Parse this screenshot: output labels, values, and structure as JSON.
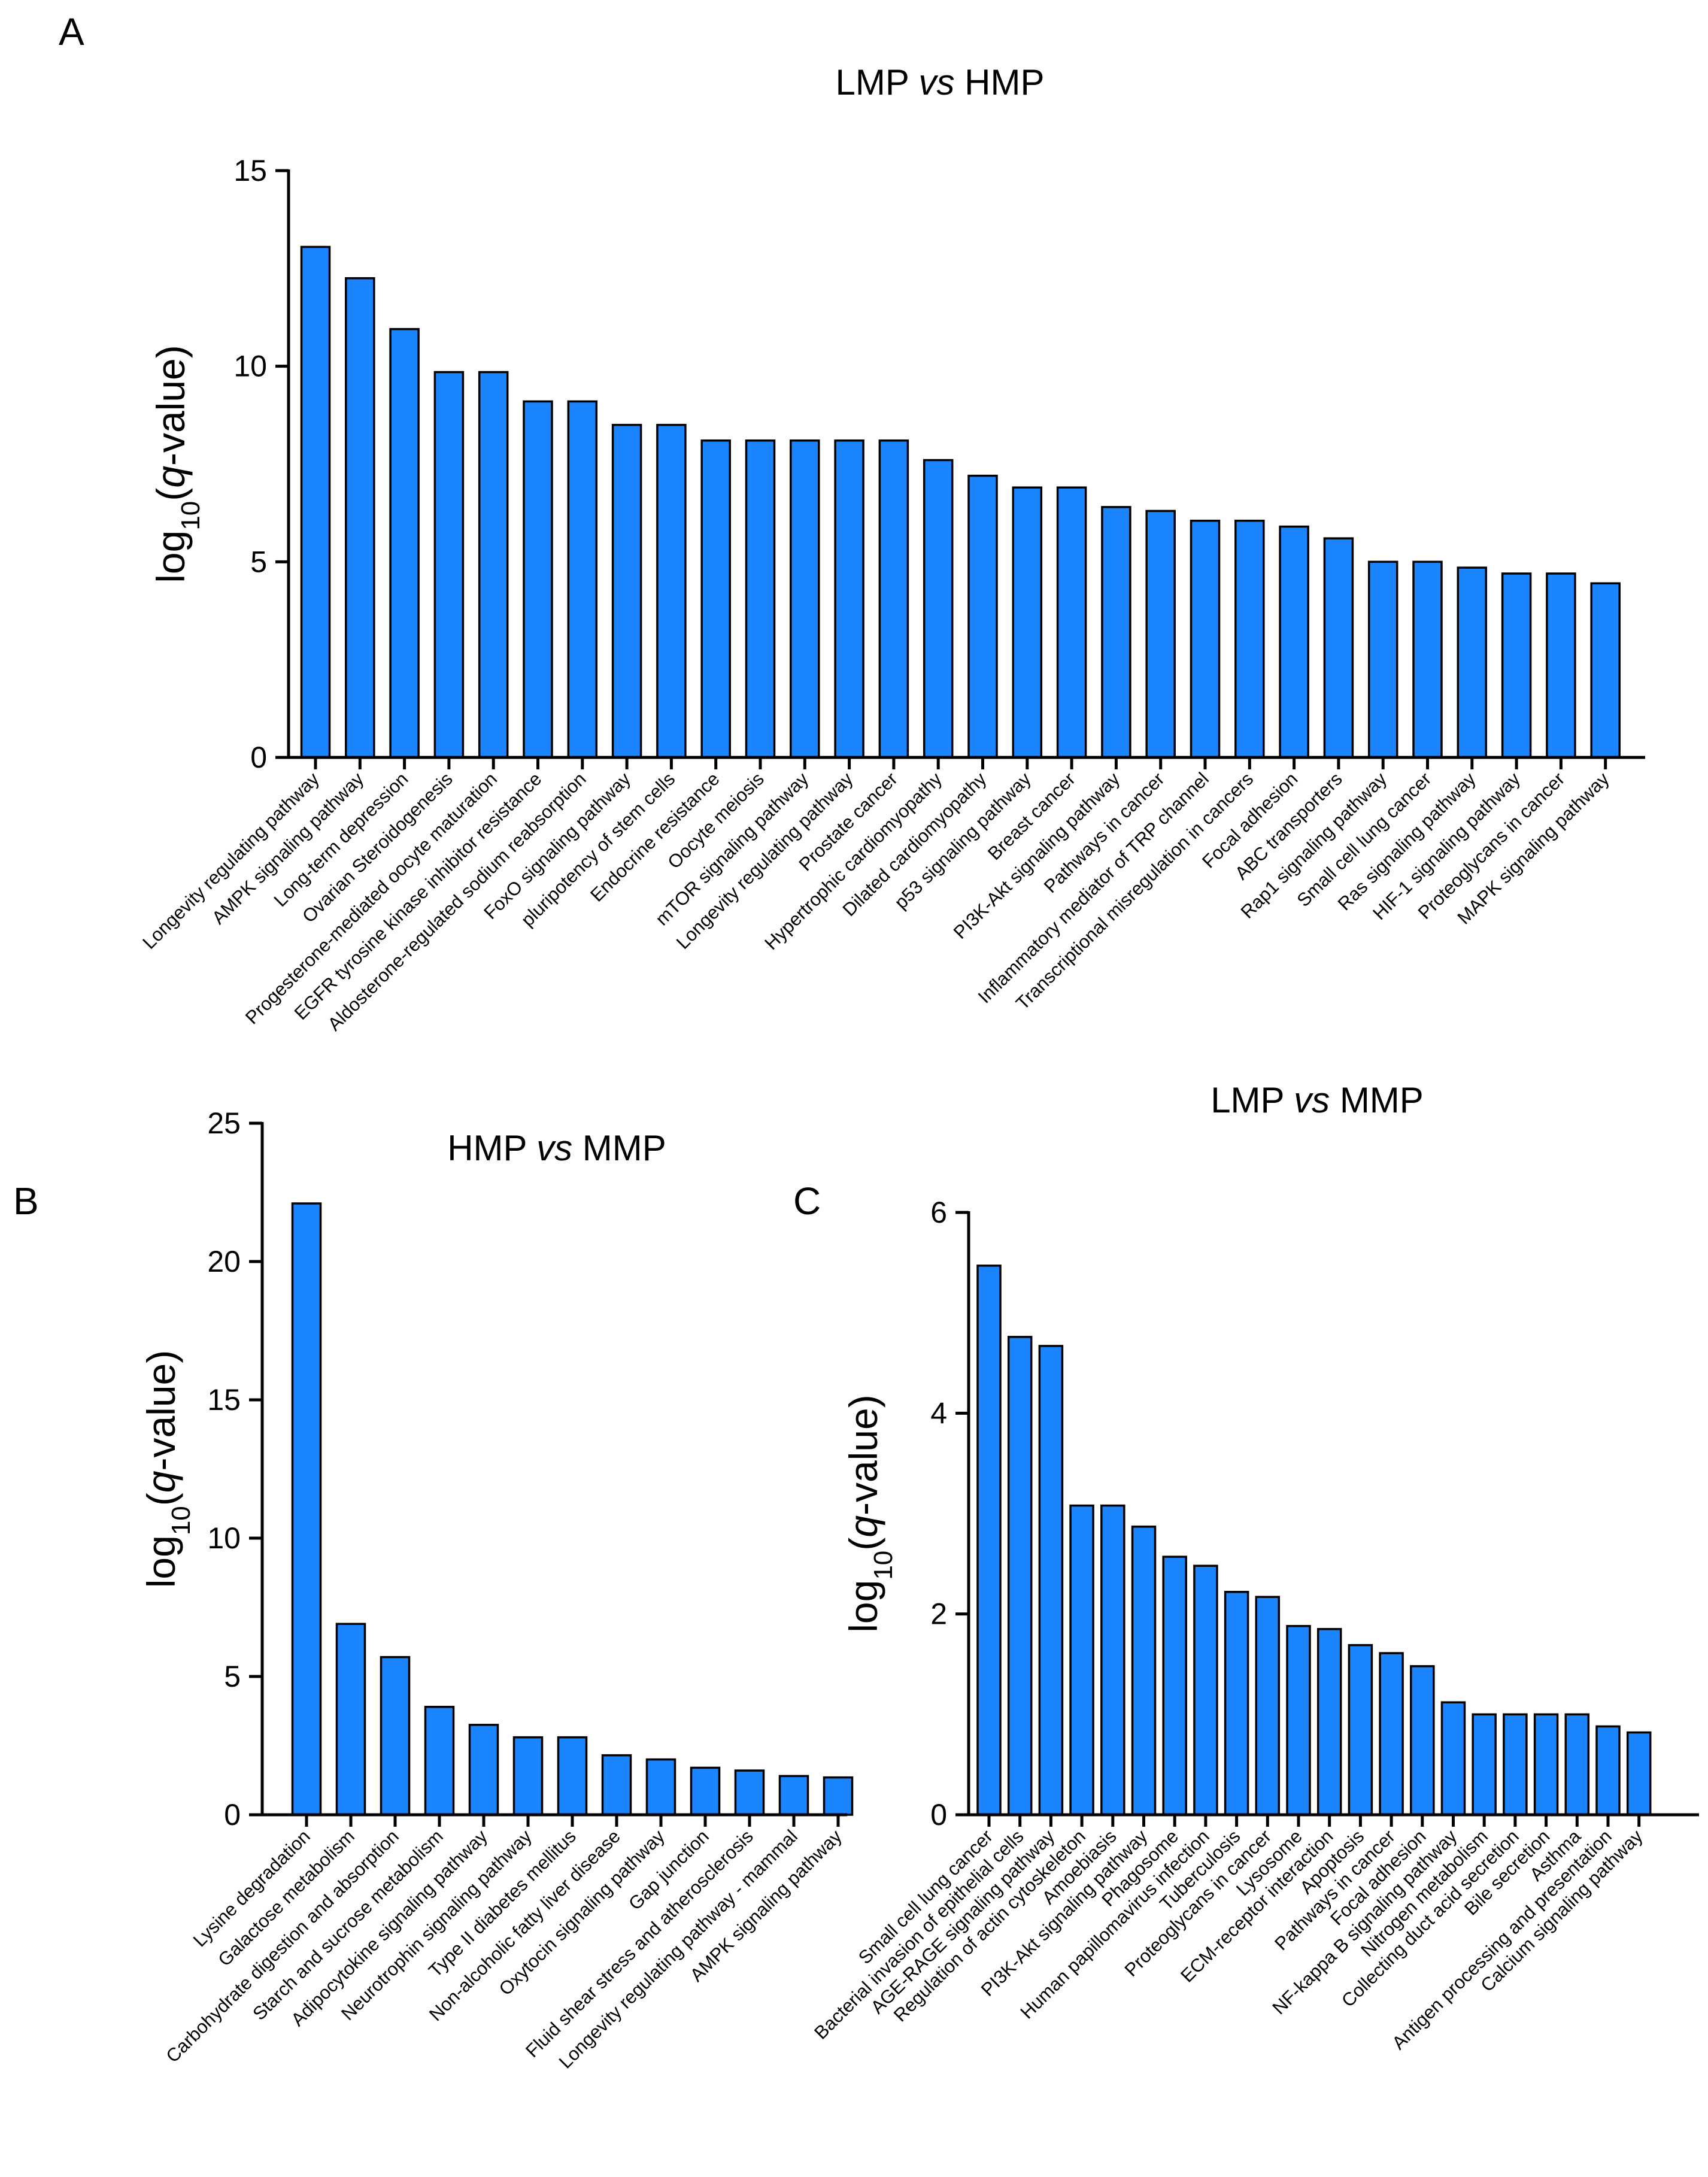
{
  "figure": {
    "background": "#ffffff"
  },
  "chart_data": [
    {
      "panel": "A",
      "type": "bar",
      "title_parts": [
        "LMP ",
        "vs",
        " HMP"
      ],
      "ylabel_parts": [
        "log",
        "10",
        "(",
        "q",
        "-value)"
      ],
      "ylim": [
        0,
        15
      ],
      "yticks": [
        0,
        5,
        10,
        15
      ],
      "grid": false,
      "bar_color": "#1a85ff",
      "categories": [
        "Longevity regulating pathway",
        "AMPK signaling pathway",
        "Long-term depression",
        "Ovarian Steroidogenesis",
        "Progesterone-mediated oocyte maturation",
        "EGFR tyrosine kinase inhibitor resistance",
        "Aldosterone-regulated sodium reabsorption",
        "FoxO signaling pathway",
        "pluripotency of stem cells",
        "Endocrine resistance",
        "Oocyte meiosis",
        "mTOR signaling pathway",
        "Longevity regulating pathway",
        "Prostate cancer",
        "Hypertrophic cardiomyopathy",
        "Dilated cardiomyopathy",
        "p53 signaling pathway",
        "Breast cancer",
        "PI3K-Akt signaling pathway",
        "Pathways in cancer",
        "Inflammatory mediator of TRP channel",
        "Transcriptional misregulation in cancers",
        "Focal adhesion",
        "ABC transporters",
        "Rap1 signaling pathway",
        "Small cell lung cancer",
        "Ras signaling pathway",
        "HIF-1 signaling pathway",
        "Proteoglycans in cancer",
        "MAPK signaling pathway"
      ],
      "values": [
        13.05,
        12.25,
        10.95,
        9.85,
        9.85,
        9.1,
        9.1,
        8.5,
        8.5,
        8.1,
        8.1,
        8.1,
        8.1,
        8.1,
        7.6,
        7.2,
        6.9,
        6.9,
        6.4,
        6.3,
        6.05,
        6.05,
        5.9,
        5.6,
        5.0,
        5.0,
        4.85,
        4.7,
        4.7,
        4.45
      ]
    },
    {
      "panel": "B",
      "type": "bar",
      "title_parts": [
        "HMP ",
        "vs",
        " MMP"
      ],
      "ylabel_parts": [
        "log",
        "10",
        "(",
        "q",
        "-value)"
      ],
      "ylim": [
        0,
        25
      ],
      "yticks": [
        0,
        5,
        10,
        15,
        20,
        25
      ],
      "grid": false,
      "bar_color": "#1a85ff",
      "categories": [
        "Lysine degradation",
        "Galactose metabolism",
        "Carbohydrate digestion and absorption",
        "Starch and sucrose metabolism",
        "Adipocytokine signaling pathway",
        "Neurotrophin signaling pathway",
        "Type II diabetes mellitus",
        "Non-alcoholic fatty liver disease",
        "Oxytocin signaling pathway",
        "Gap junction",
        "Fluid shear stress and atherosclerosis",
        "Longevity regulating pathway - mammal",
        "AMPK signaling pathway"
      ],
      "values": [
        22.1,
        6.9,
        5.7,
        3.9,
        3.25,
        2.8,
        2.8,
        2.15,
        2.0,
        1.7,
        1.6,
        1.4,
        1.35
      ]
    },
    {
      "panel": "C",
      "type": "bar",
      "title_parts": [
        "LMP ",
        "vs",
        " MMP"
      ],
      "ylabel_parts": [
        "log",
        "10",
        "(",
        "q",
        "-value)"
      ],
      "ylim": [
        0,
        6
      ],
      "yticks": [
        0,
        2,
        4,
        6
      ],
      "grid": false,
      "bar_color": "#1a85ff",
      "categories": [
        "Small cell lung cancer",
        "Bacterial invasion of epithelial cells",
        "AGE-RAGE signaling pathway",
        "Regulation of actin cytoskeleton",
        "Amoebiasis",
        "PI3K-Akt signaling pathway",
        "Phagosome",
        "Human papillomavirus infection",
        "Tuberculosis",
        "Proteoglycans in cancer",
        "Lysosome",
        "ECM-receptor interaction",
        "Apoptosis",
        "Pathways in cancer",
        "Focal adhesion",
        "NF-kappa B signaling pathway",
        "Nitrogen metabolism",
        "Collecting duct acid secretion",
        "Bile secretion",
        "Asthma",
        "Antigen processing and presentation",
        "Calcium signaling pathway"
      ],
      "values": [
        5.47,
        4.76,
        4.67,
        3.08,
        3.08,
        2.87,
        2.57,
        2.48,
        2.22,
        2.17,
        1.88,
        1.85,
        1.69,
        1.61,
        1.48,
        1.12,
        1.0,
        1.0,
        1.0,
        1.0,
        0.88,
        0.82
      ]
    }
  ]
}
